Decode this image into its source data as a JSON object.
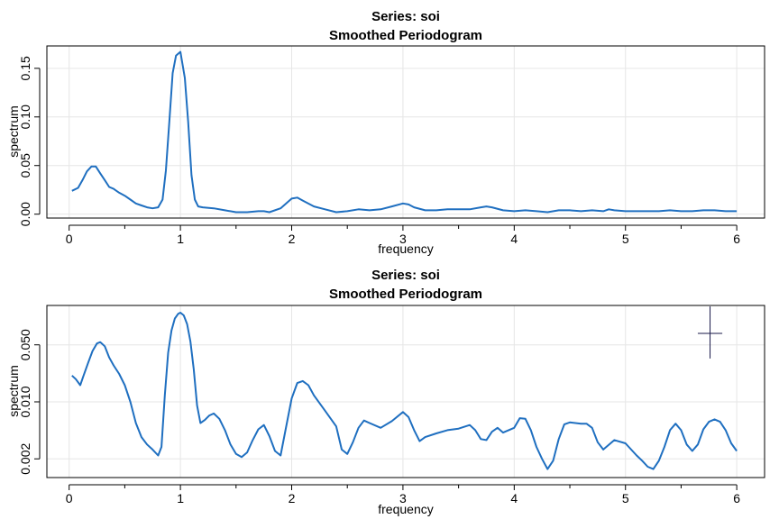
{
  "chart_data": [
    {
      "type": "line",
      "title": "Series: soi",
      "subtitle": "Smoothed Periodogram",
      "xlabel": "frequency",
      "ylabel": "spectrum",
      "xlim": [
        -0.2,
        6.25
      ],
      "ylim": [
        -0.004,
        0.173
      ],
      "xticks": [
        0,
        1,
        2,
        3,
        4,
        5,
        6
      ],
      "xtick_labels": [
        "0",
        "1",
        "2",
        "3",
        "4",
        "5",
        "6"
      ],
      "xminor": [
        0.5,
        1.5,
        2.5,
        3.5,
        4.5,
        5.5
      ],
      "yticks": [
        0.0,
        0.05,
        0.1,
        0.15
      ],
      "ytick_labels": [
        "0.00",
        "0.05",
        "0.10",
        "0.15"
      ],
      "grid": true,
      "log_y": false,
      "color": "#1f6fc0",
      "series": [
        {
          "x": [
            0.025,
            0.08,
            0.12,
            0.16,
            0.2,
            0.24,
            0.28,
            0.32,
            0.36,
            0.4,
            0.45,
            0.5,
            0.55,
            0.6,
            0.65,
            0.7,
            0.75,
            0.8,
            0.84,
            0.87,
            0.9,
            0.93,
            0.96,
            1.0,
            1.04,
            1.07,
            1.1,
            1.13,
            1.16,
            1.2,
            1.3,
            1.4,
            1.5,
            1.6,
            1.7,
            1.75,
            1.8,
            1.9,
            2.0,
            2.05,
            2.1,
            2.2,
            2.3,
            2.4,
            2.5,
            2.6,
            2.7,
            2.8,
            2.9,
            3.0,
            3.05,
            3.1,
            3.2,
            3.3,
            3.4,
            3.5,
            3.6,
            3.7,
            3.75,
            3.8,
            3.9,
            4.0,
            4.1,
            4.2,
            4.3,
            4.4,
            4.5,
            4.6,
            4.7,
            4.8,
            4.85,
            4.9,
            5.0,
            5.1,
            5.2,
            5.3,
            5.4,
            5.5,
            5.6,
            5.7,
            5.8,
            5.9,
            6.0
          ],
          "y": [
            0.024,
            0.027,
            0.035,
            0.044,
            0.049,
            0.049,
            0.042,
            0.035,
            0.028,
            0.026,
            0.022,
            0.019,
            0.015,
            0.011,
            0.009,
            0.007,
            0.006,
            0.007,
            0.015,
            0.045,
            0.095,
            0.145,
            0.163,
            0.167,
            0.14,
            0.095,
            0.04,
            0.015,
            0.008,
            0.007,
            0.006,
            0.004,
            0.002,
            0.002,
            0.003,
            0.003,
            0.002,
            0.006,
            0.016,
            0.017,
            0.014,
            0.008,
            0.005,
            0.002,
            0.003,
            0.005,
            0.004,
            0.005,
            0.008,
            0.011,
            0.01,
            0.007,
            0.004,
            0.004,
            0.005,
            0.005,
            0.005,
            0.007,
            0.008,
            0.007,
            0.004,
            0.003,
            0.004,
            0.003,
            0.002,
            0.004,
            0.004,
            0.003,
            0.004,
            0.003,
            0.005,
            0.004,
            0.003,
            0.003,
            0.003,
            0.003,
            0.004,
            0.003,
            0.003,
            0.004,
            0.004,
            0.003,
            0.003
          ]
        }
      ]
    },
    {
      "type": "line",
      "title": "Series: soi",
      "subtitle": "Smoothed Periodogram",
      "xlabel": "frequency",
      "ylabel": "spectrum",
      "xlim": [
        -0.2,
        6.25
      ],
      "ylim": [
        0.00118,
        0.152
      ],
      "xticks": [
        0,
        1,
        2,
        3,
        4,
        5,
        6
      ],
      "xtick_labels": [
        "0",
        "1",
        "2",
        "3",
        "4",
        "5",
        "6"
      ],
      "xminor": [
        0.5,
        1.5,
        2.5,
        3.5,
        4.5,
        5.5
      ],
      "yticks": [
        0.002,
        0.01,
        0.05
      ],
      "ytick_labels": [
        "0.002",
        "0.010",
        "0.050"
      ],
      "grid": true,
      "log_y": true,
      "color": "#1f6fc0",
      "crosshair": {
        "x": 5.76,
        "y_center": 0.069,
        "y_low": 0.034,
        "y_high": 0.148,
        "x_halfwidth": 0.11
      },
      "series": [
        {
          "x": [
            0.025,
            0.06,
            0.1,
            0.13,
            0.17,
            0.21,
            0.25,
            0.28,
            0.32,
            0.36,
            0.4,
            0.45,
            0.5,
            0.55,
            0.6,
            0.65,
            0.7,
            0.75,
            0.8,
            0.83,
            0.86,
            0.89,
            0.92,
            0.95,
            0.98,
            1.0,
            1.03,
            1.06,
            1.09,
            1.12,
            1.15,
            1.18,
            1.22,
            1.26,
            1.3,
            1.35,
            1.4,
            1.45,
            1.5,
            1.55,
            1.6,
            1.65,
            1.7,
            1.75,
            1.8,
            1.85,
            1.9,
            1.95,
            2.0,
            2.05,
            2.1,
            2.15,
            2.2,
            2.3,
            2.4,
            2.45,
            2.5,
            2.55,
            2.6,
            2.65,
            2.7,
            2.8,
            2.9,
            3.0,
            3.05,
            3.1,
            3.15,
            3.2,
            3.3,
            3.4,
            3.5,
            3.6,
            3.65,
            3.7,
            3.75,
            3.8,
            3.85,
            3.9,
            4.0,
            4.05,
            4.1,
            4.15,
            4.2,
            4.25,
            4.3,
            4.35,
            4.4,
            4.45,
            4.5,
            4.6,
            4.65,
            4.7,
            4.75,
            4.8,
            4.9,
            5.0,
            5.1,
            5.15,
            5.2,
            5.25,
            5.3,
            5.35,
            5.4,
            5.45,
            5.5,
            5.55,
            5.6,
            5.65,
            5.7,
            5.75,
            5.8,
            5.85,
            5.9,
            5.95,
            6.0
          ],
          "y": [
            0.021,
            0.019,
            0.016,
            0.021,
            0.03,
            0.042,
            0.052,
            0.054,
            0.048,
            0.035,
            0.028,
            0.022,
            0.016,
            0.01,
            0.0055,
            0.0037,
            0.003,
            0.0026,
            0.0022,
            0.0028,
            0.012,
            0.04,
            0.075,
            0.105,
            0.12,
            0.124,
            0.115,
            0.09,
            0.055,
            0.025,
            0.009,
            0.0055,
            0.006,
            0.0068,
            0.0072,
            0.0062,
            0.0045,
            0.003,
            0.0023,
            0.0021,
            0.0024,
            0.0034,
            0.0046,
            0.0052,
            0.0038,
            0.0025,
            0.0022,
            0.0049,
            0.011,
            0.017,
            0.018,
            0.016,
            0.012,
            0.0078,
            0.005,
            0.0026,
            0.0023,
            0.0032,
            0.0048,
            0.0059,
            0.0055,
            0.0048,
            0.0058,
            0.0075,
            0.0065,
            0.0045,
            0.0033,
            0.0037,
            0.0041,
            0.0045,
            0.0047,
            0.0052,
            0.0045,
            0.0035,
            0.0034,
            0.0043,
            0.0048,
            0.0042,
            0.0048,
            0.0063,
            0.0062,
            0.0045,
            0.0028,
            0.002,
            0.0015,
            0.0019,
            0.0035,
            0.0053,
            0.0056,
            0.0054,
            0.0054,
            0.0048,
            0.0032,
            0.0026,
            0.0034,
            0.0031,
            0.0022,
            0.0019,
            0.0016,
            0.0015,
            0.0019,
            0.0028,
            0.0045,
            0.0054,
            0.0045,
            0.003,
            0.0025,
            0.003,
            0.0046,
            0.0057,
            0.0061,
            0.0057,
            0.0045,
            0.0031,
            0.0025
          ]
        }
      ]
    }
  ]
}
